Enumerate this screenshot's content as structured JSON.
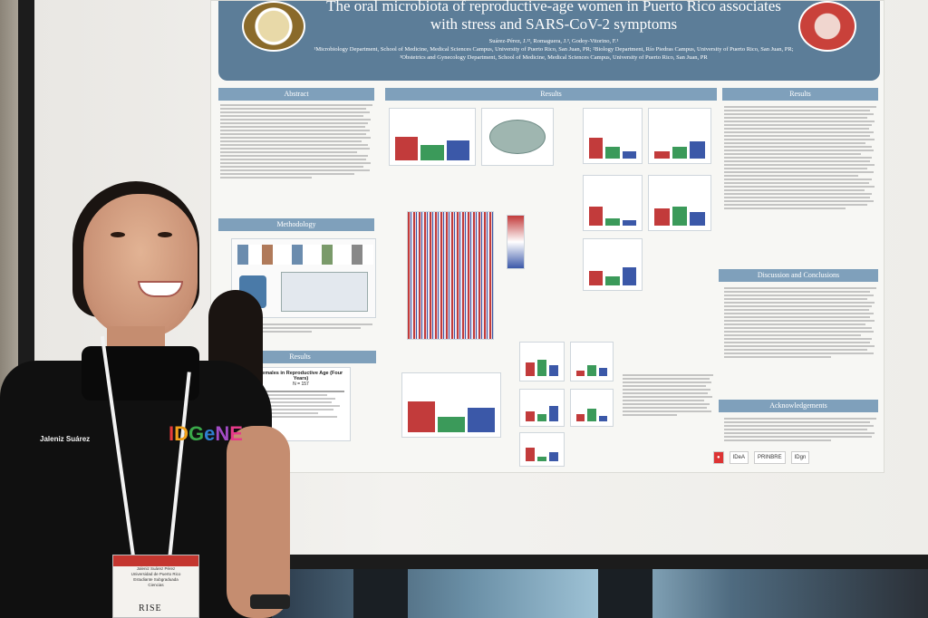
{
  "poster": {
    "title": "The oral microbiota of reproductive-age women in Puerto Rico associates with stress and SARS-CoV-2 symptoms",
    "authors": "Suárez-Pérez, J.¹², Romaguera, J.³, Godoy-Vitorino, F.¹",
    "affiliations": "¹Microbiology Department, School of Medicine, Medical Sciences Campus, University of Puerto Rico, San Juan, PR; ²Biology Department, Río Piedras Campus, University of Puerto Rico, San Juan, PR; ³Obstetrics and Gynecology Department, School of Medicine, Medical Sciences Campus, University of Puerto Rico, San Juan, PR",
    "sections": {
      "abstract": "Abstract",
      "methodology": "Methodology",
      "results_left": "Results",
      "results_center": "Results",
      "results_right": "Results",
      "discussion": "Discussion and Conclusions",
      "acknowledgements": "Acknowledgements"
    },
    "table": {
      "title": "Females in Reproductive Age (Four Years)",
      "n": "N = 157"
    },
    "logos": [
      "IDeA",
      "PRINBRE",
      "IDgn"
    ]
  },
  "person": {
    "shirt_name": "Jaleniz Suárez",
    "shirt_logo": "IDGeNE",
    "badge_lines": [
      "Jaleniz Suárez Pérez",
      "Universidad de Puerto Rico",
      "Estudiante Subgraduada",
      "Ciencias"
    ],
    "badge_org": "RISE"
  },
  "colors": {
    "header": "#5c7d98",
    "section_bar": "#7fa0bb",
    "bar_red": "#c23b3b",
    "bar_green": "#3b9a5a",
    "bar_blue": "#3b58a8"
  }
}
